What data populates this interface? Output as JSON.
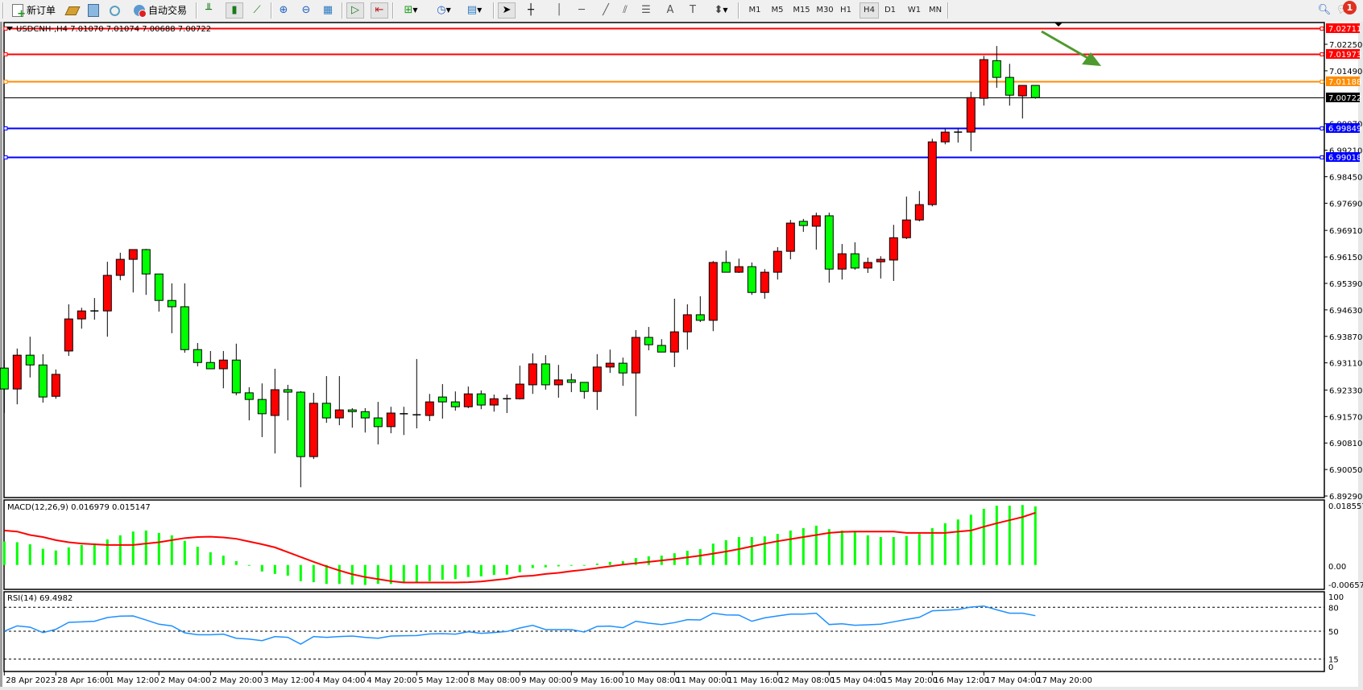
{
  "toolbar": {
    "new_order_label": "新订单",
    "auto_trading_label": "自动交易",
    "timeframes": [
      "M1",
      "M5",
      "M15",
      "M30",
      "H1",
      "H4",
      "D1",
      "W1",
      "MN"
    ],
    "active_timeframe": "H4",
    "notification_count": "1",
    "icons": [
      "new-order-icon",
      "gold-bars-icon",
      "history-icon",
      "signals-icon",
      "auto-trading-icon",
      "bar-chart-icon",
      "candlestick-chart-icon",
      "line-chart-icon",
      "zoom-in-icon",
      "zoom-out-icon",
      "tile-windows-icon",
      "auto-scroll-icon",
      "chart-shift-icon",
      "indicators-icon",
      "periodicity-icon",
      "templates-icon",
      "cursor-icon",
      "crosshair-icon",
      "vertical-line-icon",
      "horizontal-line-icon",
      "trendline-icon",
      "equidistant-channel-icon",
      "fibonacci-icon",
      "text-icon",
      "text-label-icon",
      "arrows-icon",
      "search-icon",
      "notification-icon"
    ]
  },
  "chart": {
    "header": "USDCNH-,H4  7.01070 7.01074 7.00688 7.00722",
    "colors": {
      "up": "#ff0000",
      "down": "#00ff00",
      "wick": "#000000",
      "macd_hist": "#00ff00",
      "macd_signal": "#ff0000",
      "rsi": "#1e90ff",
      "arrow": "#4e9a2e"
    },
    "levels": [
      {
        "label": "7.02711",
        "value": 7.02711,
        "color": "#ff0000"
      },
      {
        "label": "7.01973",
        "value": 7.01973,
        "color": "#ff0000"
      },
      {
        "label": "7.01188",
        "value": 7.01188,
        "color": "#ff8c00"
      },
      {
        "label": "7.00722",
        "value": 7.00722,
        "color": "#000000"
      },
      {
        "label": "6.99849",
        "value": 6.99849,
        "color": "#0000ff"
      },
      {
        "label": "6.99018",
        "value": 6.99018,
        "color": "#0000ff"
      }
    ],
    "price_ticks": [
      "7.02250",
      "7.01490",
      "6.99970",
      "6.99210",
      "6.98450",
      "6.97690",
      "6.96910",
      "6.96150",
      "6.95390",
      "6.94630",
      "6.93870",
      "6.93110",
      "6.92330",
      "6.91570",
      "6.90810",
      "6.90050",
      "6.89290"
    ],
    "time_labels": [
      "28 Apr 2023",
      "28 Apr 16:00",
      "1 May 12:00",
      "2 May 04:00",
      "2 May 20:00",
      "3 May 12:00",
      "4 May 04:00",
      "4 May 20:00",
      "5 May 12:00",
      "8 May 08:00",
      "9 May 00:00",
      "9 May 16:00",
      "10 May 08:00",
      "11 May 00:00",
      "11 May 16:00",
      "12 May 08:00",
      "15 May 04:00",
      "15 May 20:00",
      "16 May 12:00",
      "17 May 04:00",
      "17 May 20:00"
    ],
    "macd": {
      "label": "MACD(12,26,9) 0.016979 0.015147",
      "axis": [
        "0.018557",
        "0.00",
        "-0.006572"
      ]
    },
    "rsi": {
      "label": "RSI(14) 69.4982",
      "axis": [
        "100",
        "80",
        "50",
        "15",
        "0"
      ],
      "levels": [
        80,
        50,
        15
      ]
    }
  },
  "chart_data": {
    "type": "candlestick",
    "symbol": "USDCNH-",
    "timeframe": "H4",
    "ylim": [
      6.8929,
      7.0295
    ],
    "candle_format": [
      "open",
      "high",
      "low",
      "close"
    ],
    "candles": [
      [
        6.9296,
        6.9319,
        6.9167,
        6.9236
      ],
      [
        6.9236,
        6.9352,
        6.9192,
        6.9333
      ],
      [
        6.9333,
        6.9386,
        6.9269,
        6.9305
      ],
      [
        6.9305,
        6.9336,
        6.9197,
        6.9213
      ],
      [
        6.9215,
        6.9292,
        6.9208,
        6.9278
      ],
      [
        6.9345,
        6.9479,
        6.9331,
        6.9437
      ],
      [
        6.9437,
        6.9469,
        6.9409,
        6.946
      ],
      [
        6.946,
        6.9497,
        6.9435,
        6.946
      ],
      [
        6.946,
        6.9601,
        6.9386,
        6.9562
      ],
      [
        6.9562,
        6.9627,
        6.9548,
        6.9608
      ],
      [
        6.9608,
        6.9636,
        6.9513,
        6.9636
      ],
      [
        6.9636,
        6.9638,
        6.9506,
        6.9566
      ],
      [
        6.9566,
        6.9566,
        6.9458,
        6.949
      ],
      [
        6.949,
        6.9539,
        6.9396,
        6.9472
      ],
      [
        6.9472,
        6.9539,
        6.934,
        6.9349
      ],
      [
        6.9349,
        6.9368,
        6.9301,
        6.9312
      ],
      [
        6.9312,
        6.9345,
        6.9294,
        6.9294
      ],
      [
        6.9294,
        6.9345,
        6.9238,
        6.9319
      ],
      [
        6.9319,
        6.9366,
        6.9218,
        6.9225
      ],
      [
        6.9225,
        6.9241,
        6.9146,
        6.9206
      ],
      [
        6.9206,
        6.9252,
        6.9098,
        6.9165
      ],
      [
        6.916,
        6.9294,
        6.9051,
        6.9234
      ],
      [
        6.9234,
        6.9248,
        6.9146,
        6.9227
      ],
      [
        6.9227,
        6.923,
        6.8954,
        6.9042
      ],
      [
        6.9042,
        6.9225,
        6.9035,
        6.9195
      ],
      [
        6.9195,
        6.9273,
        6.9139,
        6.9153
      ],
      [
        6.9153,
        6.9273,
        6.9132,
        6.9176
      ],
      [
        6.9176,
        6.9181,
        6.9125,
        6.9171
      ],
      [
        6.9171,
        6.9181,
        6.9111,
        6.9153
      ],
      [
        6.9153,
        6.9199,
        6.9077,
        6.9128
      ],
      [
        6.9128,
        6.9185,
        6.9109,
        6.9167
      ],
      [
        6.9165,
        6.9185,
        6.9104,
        6.9165
      ],
      [
        6.9162,
        6.9322,
        6.9123,
        6.9162
      ],
      [
        6.916,
        6.9222,
        6.9144,
        6.9199
      ],
      [
        6.9213,
        6.925,
        6.9151,
        6.9199
      ],
      [
        6.9199,
        6.9229,
        6.9174,
        6.9185
      ],
      [
        6.9185,
        6.9243,
        6.9181,
        6.9222
      ],
      [
        6.9222,
        6.9232,
        6.9178,
        6.919
      ],
      [
        6.919,
        6.922,
        6.9171,
        6.9208
      ],
      [
        6.9208,
        6.922,
        6.9167,
        6.9208
      ],
      [
        6.9208,
        6.9303,
        6.9206,
        6.925
      ],
      [
        6.9248,
        6.9338,
        6.9222,
        6.9308
      ],
      [
        6.9308,
        6.9333,
        6.9234,
        6.9248
      ],
      [
        6.9248,
        6.9305,
        6.9211,
        6.9262
      ],
      [
        6.9262,
        6.928,
        6.9227,
        6.9255
      ],
      [
        6.9255,
        6.9255,
        6.9208,
        6.9229
      ],
      [
        6.9229,
        6.9336,
        6.9176,
        6.9299
      ],
      [
        6.9299,
        6.9349,
        6.9282,
        6.931
      ],
      [
        6.931,
        6.9326,
        6.9245,
        6.9282
      ],
      [
        6.9282,
        6.9405,
        6.9158,
        6.9384
      ],
      [
        6.9384,
        6.9414,
        6.9347,
        6.9363
      ],
      [
        6.9361,
        6.9379,
        6.9342,
        6.9342
      ],
      [
        6.9342,
        6.9495,
        6.9299,
        6.94
      ],
      [
        6.94,
        6.9479,
        6.9349,
        6.9449
      ],
      [
        6.9449,
        6.9502,
        6.9428,
        6.9433
      ],
      [
        6.9433,
        6.9603,
        6.9402,
        6.9599
      ],
      [
        6.9599,
        6.9633,
        6.9571,
        6.9571
      ],
      [
        6.9571,
        6.961,
        6.9569,
        6.9587
      ],
      [
        6.9587,
        6.9599,
        6.9506,
        6.9513
      ],
      [
        6.9513,
        6.958,
        6.9495,
        6.9571
      ],
      [
        6.9571,
        6.9643,
        6.955,
        6.9631
      ],
      [
        6.9631,
        6.9721,
        6.9608,
        6.9712
      ],
      [
        6.9717,
        6.9724,
        6.9687,
        6.9705
      ],
      [
        6.9703,
        6.9742,
        6.9636,
        6.9733
      ],
      [
        6.9733,
        6.9742,
        6.9541,
        6.958
      ],
      [
        6.958,
        6.9652,
        6.955,
        6.9624
      ],
      [
        6.9624,
        6.9657,
        6.9578,
        6.9583
      ],
      [
        6.9583,
        6.9613,
        6.9569,
        6.9599
      ],
      [
        6.9601,
        6.9617,
        6.9553,
        6.9608
      ],
      [
        6.9606,
        6.9707,
        6.9546,
        6.967
      ],
      [
        6.967,
        6.9788,
        6.9666,
        6.9721
      ],
      [
        6.9721,
        6.9804,
        6.9717,
        6.9765
      ],
      [
        6.9765,
        6.9954,
        6.976,
        6.9945
      ],
      [
        6.9945,
        6.9982,
        6.9938,
        6.9973
      ],
      [
        6.9973,
        6.9982,
        6.9943,
        6.9973
      ],
      [
        6.9973,
        7.0089,
        6.9918,
        7.0072
      ],
      [
        7.007,
        7.0192,
        7.0049,
        7.0181
      ],
      [
        7.0178,
        7.022,
        7.01,
        7.013
      ],
      [
        7.013,
        7.0169,
        7.0049,
        7.0079
      ],
      [
        7.0077,
        7.0107,
        7.0012,
        7.0107
      ],
      [
        7.0107,
        7.01074,
        7.00688,
        7.00722
      ]
    ],
    "macd_histogram": [
      0.0068,
      0.0066,
      0.006,
      0.0047,
      0.0042,
      0.0051,
      0.0058,
      0.0062,
      0.0074,
      0.0086,
      0.0097,
      0.01,
      0.0093,
      0.0086,
      0.007,
      0.0053,
      0.0037,
      0.0027,
      0.0011,
      -0.0002,
      -0.0019,
      -0.0026,
      -0.0031,
      -0.0047,
      -0.005,
      -0.0055,
      -0.0055,
      -0.0057,
      -0.0058,
      -0.0055,
      -0.0055,
      -0.0051,
      -0.0049,
      -0.0047,
      -0.0043,
      -0.0041,
      -0.0035,
      -0.0033,
      -0.0029,
      -0.0028,
      -0.0021,
      -0.0009,
      -0.0007,
      -0.0004,
      -0.0002,
      -0.0002,
      0.0004,
      0.0009,
      0.0011,
      0.002,
      0.0025,
      0.0027,
      0.0034,
      0.0041,
      0.0046,
      0.0062,
      0.0072,
      0.0081,
      0.0081,
      0.0083,
      0.009,
      0.01,
      0.0107,
      0.0114,
      0.0104,
      0.01,
      0.0095,
      0.0086,
      0.0081,
      0.0081,
      0.0084,
      0.009,
      0.0107,
      0.0121,
      0.0132,
      0.0146,
      0.0163,
      0.0172,
      0.0172,
      0.0174,
      0.016979
    ],
    "macd_signal": [
      0.01,
      0.0097,
      0.0087,
      0.0081,
      0.0072,
      0.0066,
      0.0062,
      0.006,
      0.0058,
      0.0058,
      0.0058,
      0.0062,
      0.0066,
      0.0072,
      0.0078,
      0.0081,
      0.0082,
      0.008,
      0.0076,
      0.0068,
      0.006,
      0.0051,
      0.0037,
      0.0023,
      0.0009,
      -0.0004,
      -0.0016,
      -0.0027,
      -0.0035,
      -0.0041,
      -0.0047,
      -0.0051,
      -0.0051,
      -0.0051,
      -0.0051,
      -0.0051,
      -0.005,
      -0.0048,
      -0.0044,
      -0.004,
      -0.0033,
      -0.0031,
      -0.0026,
      -0.0023,
      -0.0018,
      -0.0014,
      -0.0009,
      -0.0004,
      0.0001,
      0.0005,
      0.0009,
      0.0013,
      0.0017,
      0.0022,
      0.0027,
      0.0033,
      0.0039,
      0.0046,
      0.0054,
      0.0062,
      0.0069,
      0.0075,
      0.0081,
      0.0087,
      0.0093,
      0.0096,
      0.0097,
      0.0097,
      0.0097,
      0.0097,
      0.0093,
      0.0093,
      0.0093,
      0.0093,
      0.0097,
      0.01,
      0.0111,
      0.0121,
      0.013,
      0.0139,
      0.015147
    ],
    "macd_ylim": [
      -0.006572,
      0.018557
    ],
    "rsi": [
      50.0,
      56.7,
      55.1,
      48.3,
      52.4,
      61.1,
      61.8,
      62.5,
      67.2,
      68.9,
      69.2,
      64.1,
      58.8,
      56.7,
      48.0,
      45.6,
      45.6,
      46.3,
      41.2,
      40.2,
      38.2,
      43.3,
      42.3,
      33.8,
      43.3,
      42.3,
      43.3,
      43.9,
      42.3,
      41.2,
      43.9,
      44.3,
      44.6,
      46.6,
      47.0,
      46.3,
      49.3,
      47.3,
      48.3,
      49.7,
      54.0,
      57.4,
      52.0,
      52.0,
      52.0,
      49.0,
      56.1,
      56.4,
      54.4,
      62.5,
      60.1,
      58.4,
      60.8,
      64.5,
      64.1,
      72.6,
      70.5,
      70.2,
      62.5,
      66.8,
      69.2,
      71.5,
      71.5,
      72.6,
      58.4,
      59.4,
      57.4,
      58.1,
      58.8,
      61.8,
      64.8,
      67.5,
      75.6,
      76.3,
      77.3,
      80.3,
      81.6,
      76.9,
      72.6,
      72.6,
      69.4982
    ],
    "rsi_ylim": [
      0,
      100
    ]
  }
}
